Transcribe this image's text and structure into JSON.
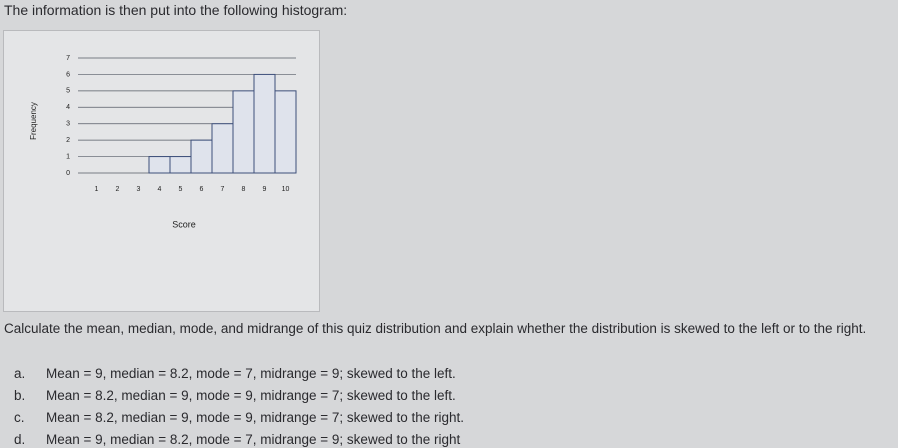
{
  "intro": "The information is then put into the following histogram:",
  "chart_data": {
    "type": "histogram",
    "x_label": "Score",
    "y_label": "Frequency",
    "bins": [
      3.5,
      4.5,
      5.5,
      6.5,
      7.5,
      8.5,
      9.5,
      10.5
    ],
    "values": [
      1,
      1,
      2,
      3,
      5,
      6,
      5
    ],
    "color": "#dfe3ec",
    "edge_color": "#3d4f7a",
    "xlim": [
      0.5,
      10.5
    ],
    "xticks": [
      1,
      2,
      3,
      4,
      5,
      6,
      7,
      8,
      9,
      10
    ],
    "ylim": [
      0,
      7
    ],
    "yticks": [
      0,
      1,
      2,
      3,
      4,
      5,
      6,
      7
    ],
    "grid": true
  },
  "question": "Calculate the mean, median, mode, and midrange of this quiz distribution and explain whether the distribution is skewed to the left or to the right.",
  "options": [
    {
      "letter": "a.",
      "text": "Mean = 9, median = 8.2, mode = 7, midrange = 9; skewed to the left."
    },
    {
      "letter": "b.",
      "text": "Mean = 8.2, median = 9, mode = 9, midrange = 7; skewed to the left."
    },
    {
      "letter": "c.",
      "text": "Mean = 8.2, median = 9, mode = 9, midrange = 7; skewed to the right."
    },
    {
      "letter": "d.",
      "text": "Mean = 9, median = 8.2, mode = 7, midrange = 9; skewed to the right"
    }
  ]
}
